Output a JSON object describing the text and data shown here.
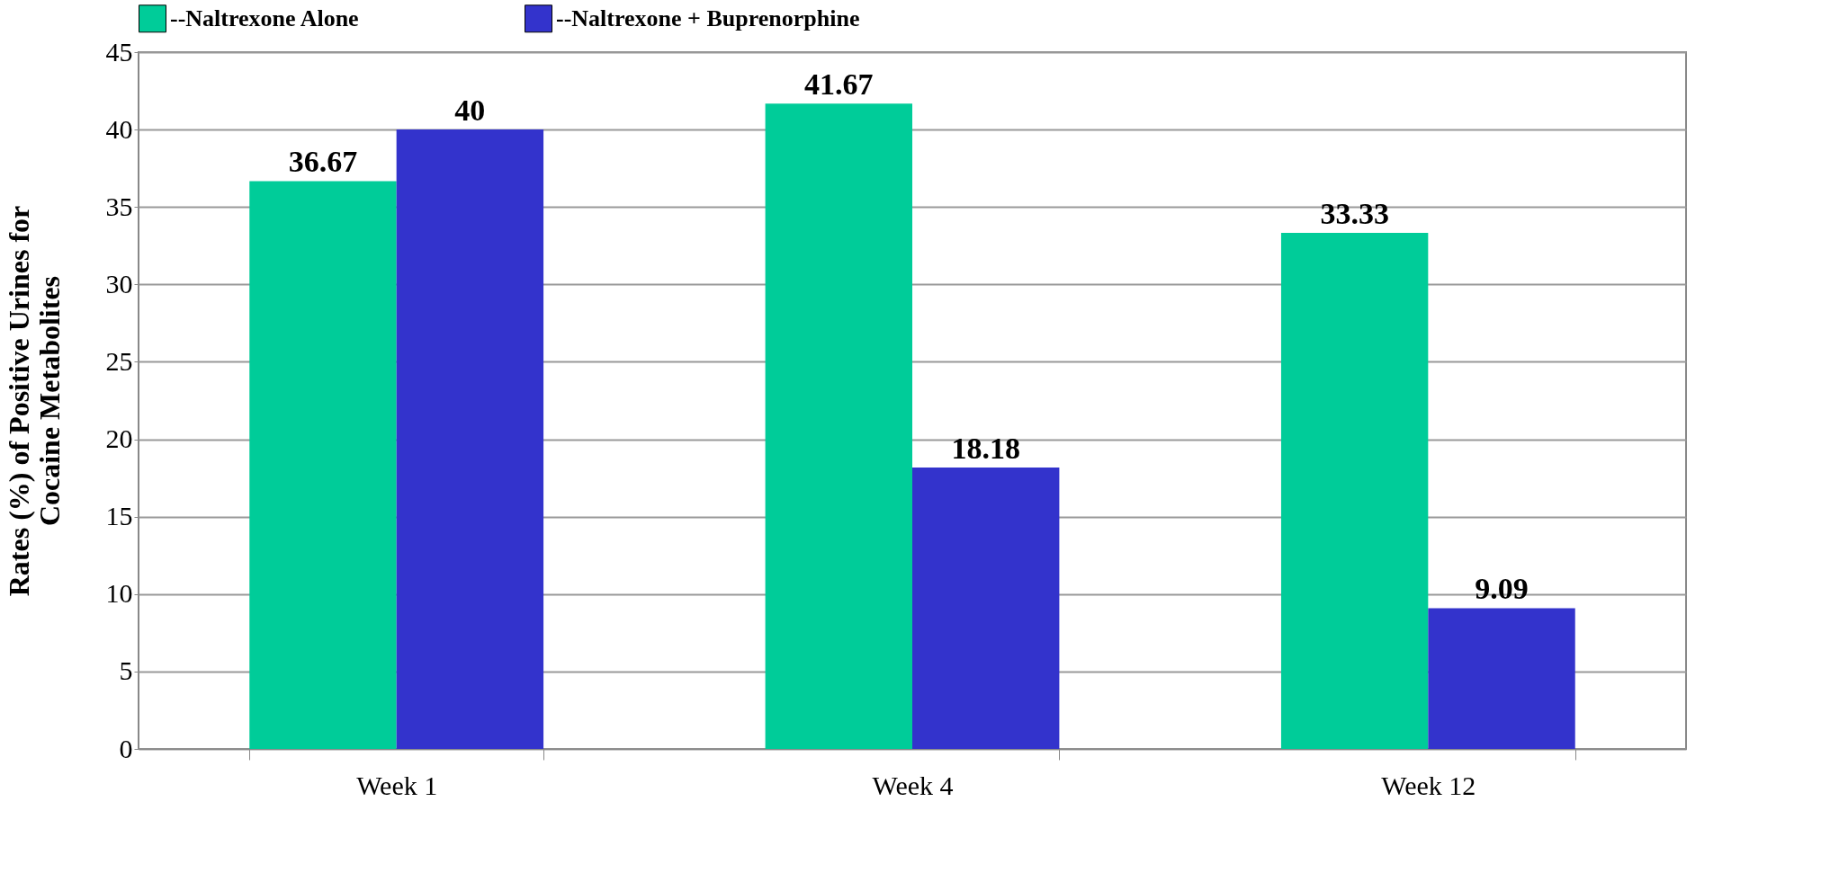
{
  "chart_data": {
    "type": "bar",
    "ylabel": "Rates (%) of Positive Urines for\nCocaine Metabolites",
    "categories": [
      "Week 1",
      "Week 4",
      "Week 12"
    ],
    "series": [
      {
        "name": "--Naltrexone Alone",
        "color": "#00cc99",
        "values": [
          36.67,
          41.67,
          33.33
        ]
      },
      {
        "name": "--Naltrexone + Buprenorphine",
        "color": "#3333cc",
        "values": [
          40,
          18.18,
          9.09
        ]
      }
    ],
    "ylim": [
      0,
      45
    ],
    "yticks": [
      0,
      5,
      10,
      15,
      20,
      25,
      30,
      35,
      40,
      45
    ],
    "grid": "y",
    "legend": "top",
    "data_labels": true
  }
}
